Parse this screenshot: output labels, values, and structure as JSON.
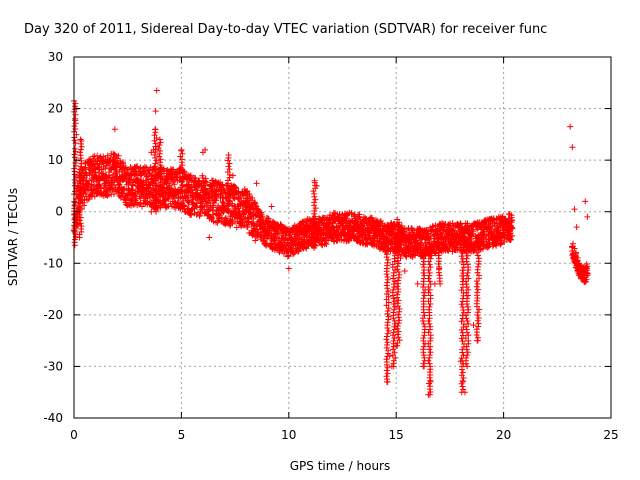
{
  "chart_data": {
    "type": "scatter",
    "title": "Day 320 of 2011, Sidereal Day-to-day VTEC variation (SDTVAR) for receiver func",
    "xlabel": "GPS time / hours",
    "ylabel": "SDTVAR / TECUs",
    "xlim": [
      0,
      25
    ],
    "ylim": [
      -40,
      30
    ],
    "xticks": [
      0,
      5,
      10,
      15,
      20,
      25
    ],
    "yticks": [
      -40,
      -30,
      -20,
      -10,
      0,
      10,
      20,
      30
    ],
    "xtick_labels": [
      "0",
      "5",
      "10",
      "15",
      "20",
      "25"
    ],
    "ytick_labels": [
      "-40",
      "-30",
      "-20",
      "-10",
      "0",
      "10",
      "20",
      "30"
    ],
    "grid": true,
    "marker": "plus",
    "color": "#ff0000",
    "series": [
      {
        "name": "SDTVAR",
        "trend": [
          [
            0,
            -2
          ],
          [
            0.3,
            4
          ],
          [
            0.6,
            6
          ],
          [
            1.0,
            7
          ],
          [
            1.5,
            7
          ],
          [
            2.0,
            7.5
          ],
          [
            2.5,
            5
          ],
          [
            3.0,
            5
          ],
          [
            3.5,
            5
          ],
          [
            4.0,
            4.5
          ],
          [
            4.5,
            5
          ],
          [
            5.0,
            4.5
          ],
          [
            5.5,
            3
          ],
          [
            6.0,
            3
          ],
          [
            6.5,
            2
          ],
          [
            7.0,
            1.5
          ],
          [
            7.5,
            1
          ],
          [
            8.0,
            0.5
          ],
          [
            8.5,
            -2
          ],
          [
            9.0,
            -4
          ],
          [
            9.5,
            -5
          ],
          [
            10.0,
            -6
          ],
          [
            10.5,
            -5
          ],
          [
            11.0,
            -4
          ],
          [
            11.5,
            -4
          ],
          [
            12.0,
            -3
          ],
          [
            12.5,
            -3
          ],
          [
            13.0,
            -3
          ],
          [
            13.5,
            -3.5
          ],
          [
            14.0,
            -4
          ],
          [
            14.5,
            -5
          ],
          [
            15.0,
            -5
          ],
          [
            15.5,
            -6
          ],
          [
            16.0,
            -6
          ],
          [
            16.5,
            -6
          ],
          [
            17.0,
            -5
          ],
          [
            17.5,
            -5
          ],
          [
            18.0,
            -5
          ],
          [
            18.5,
            -5
          ],
          [
            19.0,
            -4.5
          ],
          [
            19.5,
            -4
          ],
          [
            20.0,
            -3.5
          ],
          [
            20.4,
            -3
          ]
        ],
        "late_trend": [
          [
            23.2,
            -7
          ],
          [
            23.5,
            -11
          ],
          [
            23.8,
            -12.5
          ],
          [
            23.9,
            -11
          ]
        ],
        "spikes": [
          [
            0.0,
            21.5
          ],
          [
            0.1,
            20
          ],
          [
            0.05,
            18
          ],
          [
            0.3,
            14
          ],
          [
            1.9,
            16
          ],
          [
            3.6,
            11.5
          ],
          [
            3.7,
            12
          ],
          [
            3.8,
            16
          ],
          [
            3.85,
            23.5
          ],
          [
            3.8,
            19.5
          ],
          [
            3.6,
            0
          ],
          [
            4.0,
            14
          ],
          [
            5.0,
            12
          ],
          [
            6.0,
            11.5
          ],
          [
            6.1,
            12
          ],
          [
            6.3,
            -5
          ],
          [
            7.2,
            11
          ],
          [
            7.4,
            7
          ],
          [
            8.0,
            2
          ],
          [
            8.5,
            5.5
          ],
          [
            9.2,
            1
          ],
          [
            10.0,
            -11
          ],
          [
            11.2,
            6
          ],
          [
            11.3,
            5
          ],
          [
            14.6,
            -33
          ],
          [
            14.8,
            -30
          ],
          [
            14.7,
            -28
          ],
          [
            15.0,
            -26
          ],
          [
            15.2,
            -9
          ],
          [
            15.4,
            -11.5
          ],
          [
            16.0,
            -14
          ],
          [
            16.3,
            -30
          ],
          [
            16.5,
            -35.5
          ],
          [
            16.6,
            -33
          ],
          [
            16.8,
            -14
          ],
          [
            17.0,
            -11
          ],
          [
            18.1,
            -33
          ],
          [
            18.2,
            -35
          ],
          [
            18.0,
            -29
          ],
          [
            18.6,
            -22
          ],
          [
            18.8,
            -25
          ],
          [
            23.1,
            16.5
          ],
          [
            23.2,
            12.5
          ],
          [
            23.3,
            0.5
          ],
          [
            23.4,
            -3
          ],
          [
            23.8,
            2
          ],
          [
            23.9,
            -1
          ]
        ],
        "dips": [
          {
            "x": 14.6,
            "y0": -6,
            "y1": -33
          },
          {
            "x": 14.9,
            "y0": -7,
            "y1": -30
          },
          {
            "x": 15.1,
            "y0": -6,
            "y1": -26
          },
          {
            "x": 16.3,
            "y0": -7,
            "y1": -30
          },
          {
            "x": 16.55,
            "y0": -7,
            "y1": -35.5
          },
          {
            "x": 17.0,
            "y0": -6,
            "y1": -14
          },
          {
            "x": 18.1,
            "y0": -5,
            "y1": -35
          },
          {
            "x": 18.3,
            "y0": -5,
            "y1": -30
          },
          {
            "x": 18.8,
            "y0": -5,
            "y1": -25
          }
        ],
        "risers": [
          {
            "x": 0.05,
            "y0": -6.5,
            "y1": 21.5
          },
          {
            "x": 0.3,
            "y0": -5,
            "y1": 14
          },
          {
            "x": 3.8,
            "y0": 0,
            "y1": 16
          },
          {
            "x": 4.0,
            "y0": 3,
            "y1": 14
          },
          {
            "x": 5.0,
            "y0": 3,
            "y1": 12
          },
          {
            "x": 7.2,
            "y0": 0,
            "y1": 11
          },
          {
            "x": 11.2,
            "y0": -7,
            "y1": 6
          },
          {
            "x": 15.1,
            "y0": -7,
            "y1": -1
          }
        ]
      }
    ]
  }
}
